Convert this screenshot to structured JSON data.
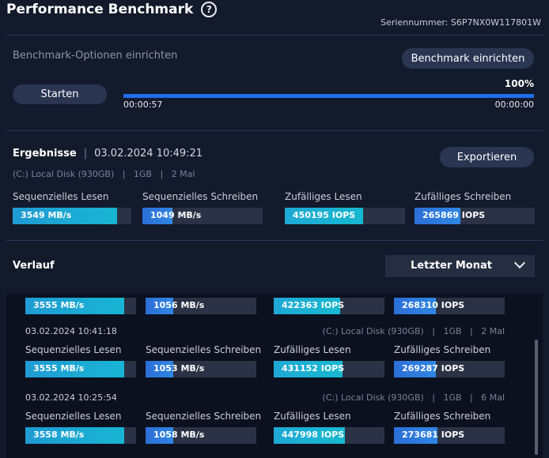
{
  "header": {
    "title": "Performance Benchmark",
    "help_icon": "?",
    "serial": "Seriennummer: S6P7NX0W117801W"
  },
  "setup": {
    "options_label": "Benchmark-Optionen einrichten",
    "setup_button": "Benchmark einrichten",
    "start_button": "Starten",
    "progress_percent": "100%",
    "progress_fraction": 1.0,
    "elapsed": "00:00:57",
    "remaining": "00:00:00"
  },
  "results": {
    "title": "Ergebnisse",
    "separator": "|",
    "datetime": "03.02.2024 10:49:21",
    "meta": "(C:) Local Disk (930GB)   |   1GB   |   2 Mal",
    "export_button": "Exportieren",
    "labels": [
      "Sequenzielles Lesen",
      "Sequenzielles Schreiben",
      "Zufälliges Lesen",
      "Zufälliges Schreiben"
    ],
    "values": [
      "3549 MB/s",
      "1049 MB/s",
      "450195 IOPS",
      "265869 IOPS"
    ],
    "fill": [
      0.88,
      0.25,
      0.65,
      0.38
    ]
  },
  "history": {
    "title": "Verlauf",
    "filter": "Letzter Monat",
    "labels": [
      "Sequenzielles Lesen",
      "Sequenzielles Schreiben",
      "Zufälliges Lesen",
      "Zufälliges Schreiben"
    ],
    "entries": [
      {
        "datetime": "",
        "meta": "",
        "values": [
          "3555 MB/s",
          "1056 MB/s",
          "422363 IOPS",
          "268310 IOPS"
        ],
        "fill": [
          0.89,
          0.25,
          0.6,
          0.38
        ]
      },
      {
        "datetime": "03.02.2024 10:41:18",
        "meta": "(C:) Local Disk (930GB)   |   1GB   |   2 Mal",
        "values": [
          "3555 MB/s",
          "1053 MB/s",
          "431152 IOPS",
          "269287 IOPS"
        ],
        "fill": [
          0.89,
          0.25,
          0.62,
          0.38
        ]
      },
      {
        "datetime": "03.02.2024 10:25:54",
        "meta": "(C:) Local Disk (930GB)   |   1GB   |   6 Mal",
        "values": [
          "3558 MB/s",
          "1058 MB/s",
          "447998 IOPS",
          "273681 IOPS"
        ],
        "fill": [
          0.89,
          0.25,
          0.64,
          0.39
        ]
      }
    ]
  }
}
